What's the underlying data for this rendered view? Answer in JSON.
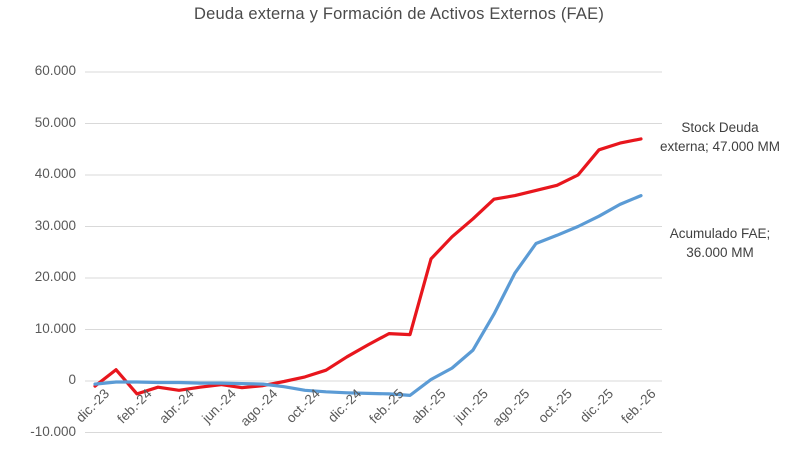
{
  "title": "Deuda externa y Formación de Activos Externos (FAE)",
  "colors": {
    "deuda_line": "#e8161d",
    "fae_line": "#5b9bd5",
    "gridline": "#d9d9d9",
    "axis_text": "#595959",
    "title_text": "#4a4a4a"
  },
  "chart_data": {
    "type": "line",
    "title": "Deuda externa y Formación de Activos Externos (FAE)",
    "unit": "MM",
    "grid": true,
    "legend_position": "none",
    "ylim": [
      -10000,
      60000
    ],
    "y_tick_interval": 10000,
    "y_tick_labels": [
      "60.000",
      "50.000",
      "40.000",
      "30.000",
      "20.000",
      "10.000",
      "0",
      "-10.000"
    ],
    "x": [
      "dic.-23",
      "ene.-24",
      "feb.-24",
      "mar.-24",
      "abr.-24",
      "may.-24",
      "jun.-24",
      "jul.-24",
      "ago.-24",
      "sep.-24",
      "oct.-24",
      "nov.-24",
      "dic.-24",
      "ene.-25",
      "feb.-25",
      "mar.-25",
      "abr.-25",
      "may.-25",
      "jun.-25",
      "jul.-25",
      "ago.-25",
      "sep.-25",
      "oct.-25",
      "nov.-25",
      "dic.-25",
      "ene.-26",
      "feb.-26"
    ],
    "x_tick_labels_shown": [
      "dic.-23",
      "feb.-24",
      "abr.-24",
      "jun.-24",
      "ago.-24",
      "oct.-24",
      "dic.-24",
      "feb.-25",
      "abr.-25",
      "jun.-25",
      "ago.-25",
      "oct.-25",
      "dic.-25",
      "feb.-26"
    ],
    "x_tick_step": 2,
    "series": [
      {
        "name": "Stock Deuda externa",
        "color": "#e8161d",
        "values": [
          -1000,
          2200,
          -2500,
          -1200,
          -1800,
          -1200,
          -700,
          -1300,
          -900,
          -100,
          800,
          2100,
          4700,
          7000,
          9200,
          9000,
          23700,
          28000,
          31500,
          35300,
          36000,
          37000,
          38000,
          40000,
          44900,
          46200,
          47000
        ]
      },
      {
        "name": "Acumulado FAE",
        "color": "#5b9bd5",
        "values": [
          -600,
          -200,
          -200,
          -300,
          -300,
          -400,
          -400,
          -500,
          -600,
          -1100,
          -1800,
          -2100,
          -2300,
          -2400,
          -2500,
          -2800,
          300,
          2500,
          6000,
          13000,
          21000,
          26700,
          28300,
          30000,
          32000,
          34300,
          36000
        ]
      }
    ],
    "annotations": [
      {
        "series": "Stock Deuda externa",
        "line1": "Stock Deuda",
        "line2": "externa;  47.000 MM"
      },
      {
        "series": "Acumulado FAE",
        "line1": "Acumulado FAE;",
        "line2": "36.000 MM"
      }
    ]
  }
}
